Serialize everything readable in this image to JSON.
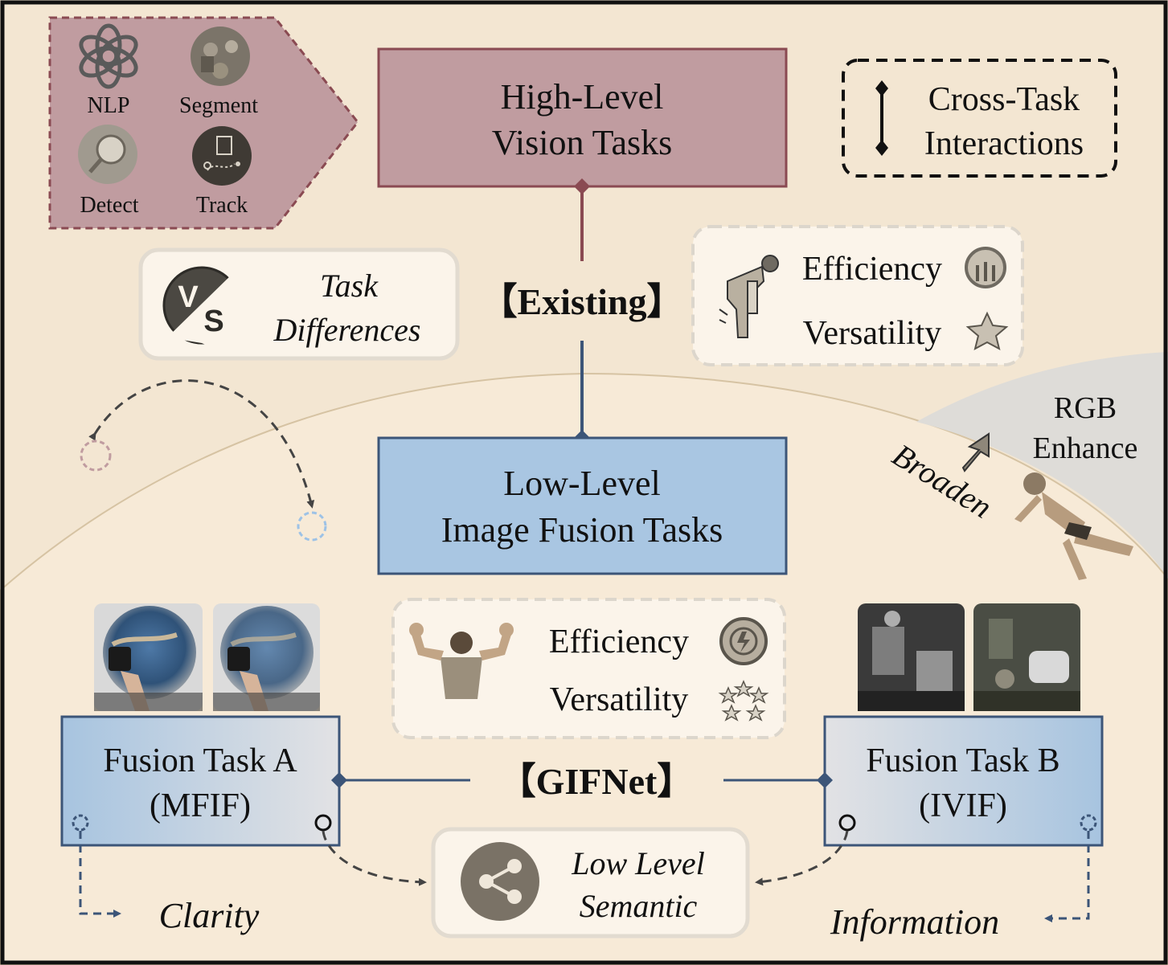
{
  "top_panel": {
    "items": [
      {
        "label": "NLP",
        "icon": "openai-logo-icon"
      },
      {
        "label": "Segment",
        "icon": "segment-photo-icon"
      },
      {
        "label": "Detect",
        "icon": "detect-photo-icon"
      },
      {
        "label": "Track",
        "icon": "track-route-icon"
      }
    ]
  },
  "high_level": {
    "line1": "High-Level",
    "line2": "Vision Tasks"
  },
  "legend": {
    "line1": "Cross-Task",
    "line2": "Interactions"
  },
  "task_differences": {
    "line1": "Task",
    "line2": "Differences",
    "icon": "versus-icon",
    "vs_v": "V",
    "vs_s": "S"
  },
  "existing_label": "【Existing】",
  "existing_props": {
    "efficiency": "Efficiency",
    "versatility": "Versatility",
    "person_icon": "tired-person-icon",
    "eff_icon": "low-gauge-icon",
    "ver_icon": "single-star-icon"
  },
  "low_level": {
    "line1": "Low-Level",
    "line2": "Image Fusion Tasks"
  },
  "broaden": {
    "label": "Broaden",
    "target_line1": "RGB",
    "target_line2": "Enhance",
    "icon": "leaping-person-icon"
  },
  "gifnet_props": {
    "efficiency": "Efficiency",
    "versatility": "Versatility",
    "person_icon": "strong-person-icon",
    "eff_icon": "fast-gauge-icon",
    "ver_icon": "star-ring-icon"
  },
  "gifnet_label": "【GIFNet】",
  "task_a": {
    "line1": "Fusion Task A",
    "line2": "(MFIF)",
    "images": [
      "globe-photo-near-focus",
      "globe-photo-far-focus"
    ]
  },
  "task_b": {
    "line1": "Fusion Task B",
    "line2": "(IVIF)",
    "images": [
      "street-infrared-photo",
      "street-visible-photo"
    ]
  },
  "semantic": {
    "line1": "Low Level",
    "line2": "Semantic",
    "icon": "share-nodes-icon"
  },
  "clarity": "Clarity",
  "information": "Information",
  "colors": {
    "background": "#f3e6d2",
    "inner_region": "#f7ead7",
    "high_level_fill": "#c09ca0",
    "high_level_border": "#8a4a52",
    "low_level_fill": "#a9c6e2",
    "low_level_border": "#3c5578",
    "rgb_region": "#dedcd8",
    "ink": "#111111"
  }
}
